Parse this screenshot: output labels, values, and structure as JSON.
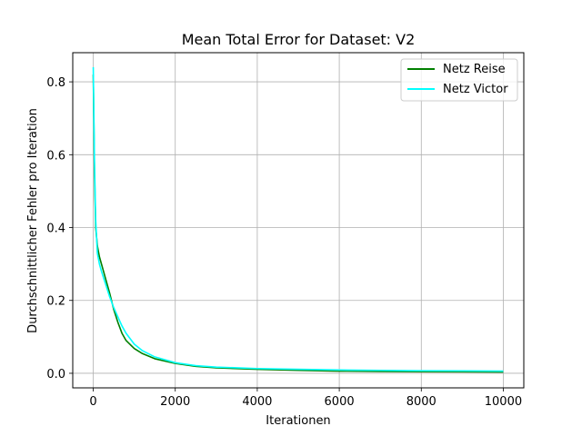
{
  "chart_data": {
    "type": "line",
    "title": "Mean Total Error for Dataset: V2",
    "xlabel": "Iterationen",
    "ylabel": "Durchschnittlicher Fehler pro Iteration",
    "xlim": [
      -500,
      10500
    ],
    "ylim": [
      -0.04,
      0.88
    ],
    "xticks": [
      0,
      2000,
      4000,
      6000,
      8000,
      10000
    ],
    "xtick_labels": [
      "0",
      "2000",
      "4000",
      "6000",
      "8000",
      "10000"
    ],
    "yticks": [
      0.0,
      0.2,
      0.4,
      0.6,
      0.8
    ],
    "ytick_labels": [
      "0.0",
      "0.2",
      "0.4",
      "0.6",
      "0.8"
    ],
    "grid": true,
    "legend_position": "top-right",
    "series": [
      {
        "name": "Netz Reise",
        "color": "#008000",
        "x": [
          0,
          30,
          60,
          100,
          150,
          200,
          300,
          400,
          500,
          600,
          700,
          800,
          1000,
          1200,
          1500,
          2000,
          2500,
          3000,
          4000,
          5000,
          6000,
          7000,
          8000,
          9000,
          10000
        ],
        "y": [
          0.82,
          0.55,
          0.4,
          0.35,
          0.32,
          0.3,
          0.26,
          0.22,
          0.175,
          0.14,
          0.11,
          0.09,
          0.068,
          0.054,
          0.04,
          0.027,
          0.019,
          0.015,
          0.011,
          0.008,
          0.006,
          0.005,
          0.0045,
          0.004,
          0.0035
        ]
      },
      {
        "name": "Netz Victor",
        "color": "#00ffff",
        "x": [
          0,
          30,
          60,
          100,
          150,
          200,
          300,
          400,
          500,
          600,
          700,
          800,
          1000,
          1200,
          1500,
          2000,
          2500,
          3000,
          4000,
          5000,
          6000,
          7000,
          8000,
          9000,
          10000
        ],
        "y": [
          0.84,
          0.58,
          0.42,
          0.33,
          0.3,
          0.28,
          0.245,
          0.21,
          0.18,
          0.155,
          0.13,
          0.11,
          0.08,
          0.062,
          0.045,
          0.029,
          0.021,
          0.017,
          0.013,
          0.011,
          0.009,
          0.008,
          0.007,
          0.0065,
          0.006
        ]
      }
    ]
  }
}
